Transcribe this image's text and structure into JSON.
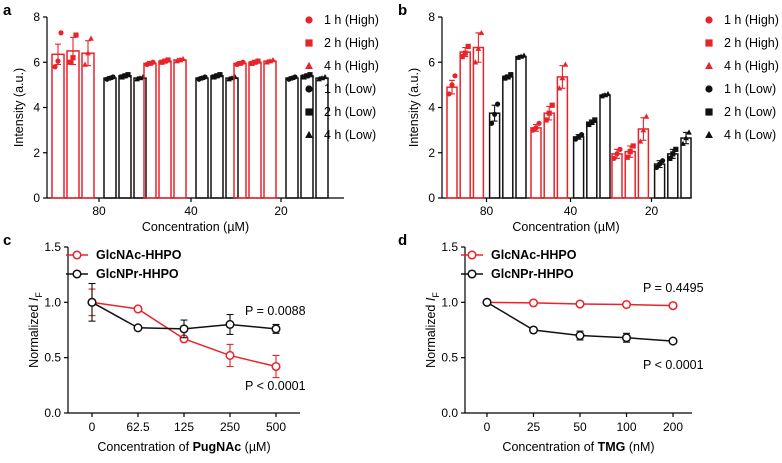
{
  "colors": {
    "high": "#e8232a",
    "low": "#111111",
    "glcnac": "#e8232a",
    "glcnpr": "#111111"
  },
  "chart_data": [
    {
      "panel": "a",
      "type": "bar",
      "ylabel": "Intensity (a.u.)",
      "xlabel": "Concentration (µM)",
      "ylim": [
        0,
        8
      ],
      "yticks": [
        "0",
        "2",
        "4",
        "6",
        "8"
      ],
      "categories": [
        "80",
        "40",
        "20"
      ],
      "series": [
        {
          "name": "1 h (High)",
          "group": "high",
          "marker": "circle",
          "values": [
            6.35,
            5.95,
            5.95
          ],
          "err": [
            0.45,
            0.08,
            0.08
          ],
          "points": [
            [
              5.8,
              6.05,
              7.3
            ],
            [
              5.9,
              5.95,
              6.0
            ],
            [
              5.9,
              5.95,
              6.0
            ]
          ]
        },
        {
          "name": "2 h (High)",
          "group": "high",
          "marker": "square",
          "values": [
            6.5,
            6.05,
            6.0
          ],
          "err": [
            0.6,
            0.06,
            0.07
          ],
          "points": [
            [
              6.0,
              6.2,
              7.2
            ],
            [
              6.0,
              6.05,
              6.1
            ],
            [
              5.95,
              6.0,
              6.05
            ]
          ]
        },
        {
          "name": "4 h (High)",
          "group": "high",
          "marker": "triangle",
          "values": [
            6.4,
            6.1,
            6.05
          ],
          "err": [
            0.55,
            0.07,
            0.05
          ],
          "points": [
            [
              5.9,
              6.4,
              7.05
            ],
            [
              6.05,
              6.1,
              6.15
            ],
            [
              6.0,
              6.05,
              6.1
            ]
          ]
        },
        {
          "name": "1 h (Low)",
          "group": "low",
          "marker": "circle",
          "values": [
            5.3,
            5.3,
            5.3
          ],
          "err": [
            0.06,
            0.06,
            0.06
          ],
          "points": [
            [
              5.25,
              5.3,
              5.35
            ],
            [
              5.25,
              5.3,
              5.35
            ],
            [
              5.25,
              5.3,
              5.35
            ]
          ]
        },
        {
          "name": "2 h (Low)",
          "group": "low",
          "marker": "square",
          "values": [
            5.4,
            5.4,
            5.4
          ],
          "err": [
            0.06,
            0.06,
            0.06
          ],
          "points": [
            [
              5.35,
              5.4,
              5.45
            ],
            [
              5.35,
              5.4,
              5.45
            ],
            [
              5.35,
              5.4,
              5.45
            ]
          ]
        },
        {
          "name": "4 h (Low)",
          "group": "low",
          "marker": "triangle",
          "values": [
            5.3,
            5.3,
            5.3
          ],
          "err": [
            0.05,
            0.05,
            0.05
          ],
          "points": [
            [
              5.25,
              5.3,
              5.35
            ],
            [
              5.25,
              5.3,
              5.35
            ],
            [
              5.25,
              5.3,
              5.35
            ]
          ]
        }
      ]
    },
    {
      "panel": "b",
      "type": "bar",
      "ylabel": "Intensity (a.u.)",
      "xlabel": "Concentration (µM)",
      "ylim": [
        0,
        8
      ],
      "yticks": [
        "0",
        "2",
        "4",
        "6",
        "8"
      ],
      "categories": [
        "80",
        "40",
        "20"
      ],
      "series": [
        {
          "name": "1 h (High)",
          "group": "high",
          "marker": "circle",
          "values": [
            4.9,
            3.1,
            1.95
          ],
          "err": [
            0.3,
            0.15,
            0.2
          ],
          "points": [
            [
              4.6,
              5.0,
              5.4
            ],
            [
              3.0,
              3.1,
              3.3
            ],
            [
              1.75,
              1.95,
              2.15
            ]
          ]
        },
        {
          "name": "2 h (High)",
          "group": "high",
          "marker": "square",
          "values": [
            6.45,
            3.75,
            2.05
          ],
          "err": [
            0.2,
            0.3,
            0.25
          ],
          "points": [
            [
              6.25,
              6.4,
              6.7
            ],
            [
              3.45,
              3.75,
              4.1
            ],
            [
              1.8,
              2.05,
              2.3
            ]
          ]
        },
        {
          "name": "4 h (High)",
          "group": "high",
          "marker": "triangle",
          "values": [
            6.65,
            5.35,
            3.05
          ],
          "err": [
            0.65,
            0.5,
            0.5
          ],
          "points": [
            [
              6.0,
              6.6,
              7.3
            ],
            [
              4.85,
              5.3,
              5.9
            ],
            [
              2.5,
              3.0,
              3.6
            ]
          ]
        },
        {
          "name": "1 h (Low)",
          "group": "low",
          "marker": "circle",
          "values": [
            3.75,
            2.7,
            1.5
          ],
          "err": [
            0.35,
            0.1,
            0.15
          ],
          "points": [
            [
              3.3,
              3.7,
              4.15
            ],
            [
              2.6,
              2.7,
              2.8
            ],
            [
              1.35,
              1.5,
              1.65
            ]
          ]
        },
        {
          "name": "2 h (Low)",
          "group": "low",
          "marker": "square",
          "values": [
            5.35,
            3.35,
            1.95
          ],
          "err": [
            0.08,
            0.1,
            0.2
          ],
          "points": [
            [
              5.3,
              5.35,
              5.45
            ],
            [
              3.25,
              3.35,
              3.45
            ],
            [
              1.75,
              1.95,
              2.15
            ]
          ]
        },
        {
          "name": "4 h (Low)",
          "group": "low",
          "marker": "triangle",
          "values": [
            6.25,
            4.55,
            2.65
          ],
          "err": [
            0.05,
            0.05,
            0.25
          ],
          "points": [
            [
              6.2,
              6.25,
              6.3
            ],
            [
              4.5,
              4.55,
              4.6
            ],
            [
              2.4,
              2.65,
              2.9
            ]
          ]
        }
      ]
    },
    {
      "panel": "c",
      "type": "line",
      "ylabel_main": "Normalized ",
      "ylabel_italic": "I",
      "ylabel_sub": "F",
      "xlabel_pre": "Concentration of ",
      "xlabel_bold": "PugNAc",
      "xlabel_post": " (µM)",
      "ylim": [
        0.0,
        1.5
      ],
      "yticks": [
        "0.0",
        "0.5",
        "1.0",
        "1.5"
      ],
      "categories": [
        "0",
        "62.5",
        "125",
        "250",
        "500"
      ],
      "series": [
        {
          "name": "GlcNAc-HHPO",
          "color": "glcnac",
          "values": [
            1.0,
            0.94,
            0.67,
            0.52,
            0.42
          ],
          "err": [
            0.12,
            0.0,
            0.0,
            0.1,
            0.1
          ]
        },
        {
          "name": "GlcNPr-HHPO",
          "color": "glcnpr",
          "values": [
            1.0,
            0.77,
            0.76,
            0.8,
            0.76
          ],
          "err": [
            0.17,
            0.0,
            0.08,
            0.09,
            0.04
          ]
        }
      ],
      "annotations": [
        {
          "text": "P = 0.0088",
          "anchor": "above-right"
        },
        {
          "text": "P < 0.0001",
          "anchor": "below-right"
        }
      ]
    },
    {
      "panel": "d",
      "type": "line",
      "ylabel_main": "Normalized ",
      "ylabel_italic": "I",
      "ylabel_sub": "F",
      "xlabel_pre": "Concentration of ",
      "xlabel_bold": "TMG",
      "xlabel_post": " (nM)",
      "ylim": [
        0.0,
        1.5
      ],
      "yticks": [
        "0.0",
        "0.5",
        "1.0",
        "1.5"
      ],
      "categories": [
        "0",
        "25",
        "50",
        "100",
        "200"
      ],
      "series": [
        {
          "name": "GlcNAc-HHPO",
          "color": "glcnac",
          "values": [
            1.0,
            0.995,
            0.985,
            0.98,
            0.97
          ],
          "err": [
            0.0,
            0.02,
            0.02,
            0.02,
            0.02
          ]
        },
        {
          "name": "GlcNPr-HHPO",
          "color": "glcnpr",
          "values": [
            1.0,
            0.75,
            0.7,
            0.68,
            0.65
          ],
          "err": [
            0.0,
            0.02,
            0.04,
            0.04,
            0.02
          ]
        }
      ],
      "annotations": [
        {
          "text": "P = 0.4495",
          "anchor": "above-right"
        },
        {
          "text": "P < 0.0001",
          "anchor": "below-right"
        }
      ]
    }
  ]
}
